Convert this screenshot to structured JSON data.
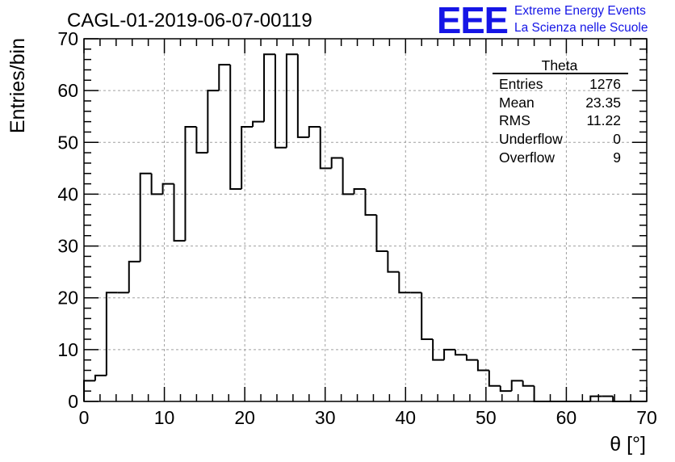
{
  "chart_data": {
    "type": "bar",
    "histogram": true,
    "title": "CAGL-01-2019-06-07-00119",
    "xlabel": "θ [°]",
    "ylabel": "Entries/bin",
    "xlim": [
      0,
      70
    ],
    "ylim": [
      0,
      70
    ],
    "bin_width": 1.4,
    "x_ticks": [
      "0",
      "10",
      "20",
      "30",
      "40",
      "50",
      "60",
      "70"
    ],
    "y_ticks": [
      "0",
      "10",
      "20",
      "30",
      "40",
      "50",
      "60",
      "70"
    ],
    "grid": true,
    "values": [
      4,
      5,
      21,
      21,
      27,
      44,
      40,
      42,
      31,
      53,
      48,
      60,
      65,
      41,
      53,
      54,
      67,
      49,
      67,
      51,
      53,
      45,
      47,
      40,
      41,
      36,
      29,
      25,
      21,
      21,
      12,
      8,
      10,
      9,
      8,
      6,
      3,
      2,
      4,
      3,
      0,
      0,
      0,
      0,
      0,
      1,
      1,
      0,
      0,
      0
    ]
  },
  "stats_box": {
    "title": "Theta",
    "rows": [
      {
        "label": "Entries",
        "value": "1276"
      },
      {
        "label": "Mean",
        "value": "23.35"
      },
      {
        "label": "RMS",
        "value": "11.22"
      },
      {
        "label": "Underflow",
        "value": "0"
      },
      {
        "label": "Overflow",
        "value": "9"
      }
    ]
  },
  "brand": {
    "logo_text": "EEE",
    "line1": "Extreme Energy Events",
    "line2": "La Scienza nelle Scuole",
    "color": "#1515e6"
  }
}
